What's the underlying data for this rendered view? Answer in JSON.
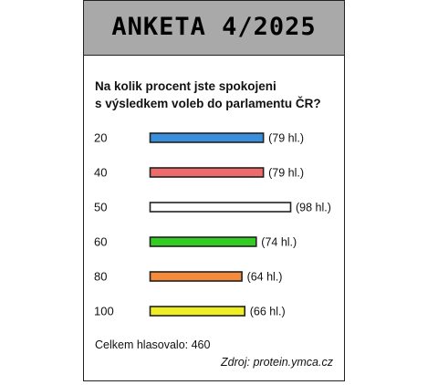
{
  "header": {
    "title": "ANKETA 4/2025"
  },
  "question": {
    "line1": "Na kolik procent jste spokojeni",
    "line2": "s výsledkem voleb do parlamentu ČR?"
  },
  "chart_data": {
    "type": "bar",
    "orientation": "horizontal",
    "categories": [
      "20",
      "40",
      "50",
      "60",
      "80",
      "100"
    ],
    "values": [
      79,
      79,
      98,
      74,
      64,
      66
    ],
    "value_labels": [
      "(79 hl.)",
      "(79 hl.)",
      "(98 hl.)",
      "(74 hl.)",
      "(64 hl.)",
      "(66 hl.)"
    ],
    "colors": [
      "#3a8fdc",
      "#ee6b6b",
      "#ffffff",
      "#33cc22",
      "#f58a3a",
      "#eeee22"
    ],
    "bar_outline": "#222222",
    "xlim": [
      0,
      98
    ],
    "grid": false,
    "title": "",
    "xlabel": "",
    "ylabel": ""
  },
  "footer": {
    "total": "Celkem hlasovalo: 460",
    "source": "Zdroj: protein.ymca.cz"
  },
  "colors": {
    "title_band": "#a9a9a9",
    "frame": "#222222"
  }
}
